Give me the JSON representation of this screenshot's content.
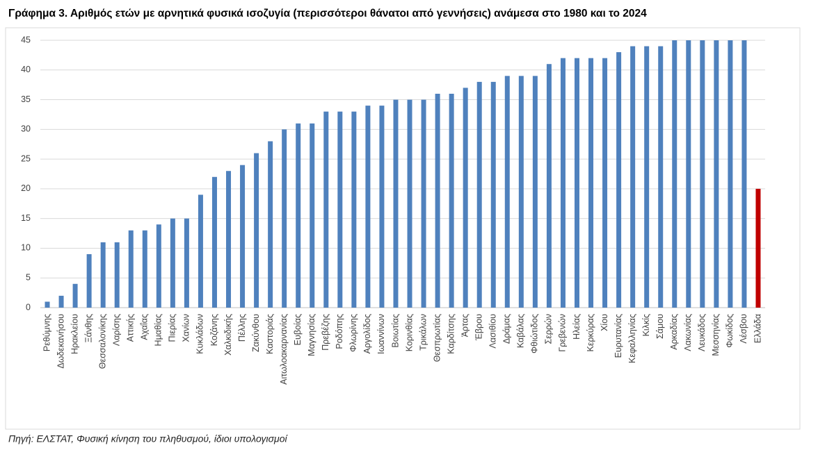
{
  "chart_data": {
    "type": "bar",
    "title": "Γράφημα 3. Αριθμός ετών με αρνητικά φυσικά ισοζυγία (περισσότεροι θάνατοι από γεννήσεις) ανάμεσα στο 1980 και το 2024",
    "source": "Πηγή: ΕΛΣΤΑΤ, Φυσική κίνηση του πληθυσμού, ίδιοι υπολογισμοί",
    "categories": [
      "Ρεθύμνης",
      "Δωδεκανήσου",
      "Ηρακλείου",
      "Ξάνθης",
      "Θεσσαλονίκης",
      "Λαρίσης",
      "Αττικής",
      "Αχαΐας",
      "Ημαθίας",
      "Πιερίας",
      "Χανίων",
      "Κυκλάδων",
      "Κοζάνης",
      "Χαλκιδικής",
      "Πέλλης",
      "Ζακύνθου",
      "Καστοριάς",
      "Αιτωλοακαρνανίας",
      "Ευβοίας",
      "Μαγνησίας",
      "Πρεβέζης",
      "Ροδόπης",
      "Φλωρίνης",
      "Αργολίδος",
      "Ιωαννίνων",
      "Βοιωτίας",
      "Κορινθίας",
      "Τρικάλων",
      "Θεσπρωτίας",
      "Καρδίτσης",
      "Άρτας",
      "Έβρου",
      "Λασιθίου",
      "Δράμας",
      "Καβάλας",
      "Φθιώτιδος",
      "Σερρών",
      "Γρεβενών",
      "Ηλείας",
      "Κερκύρας",
      "Χίου",
      "Ευρυτανίας",
      "Κεφαλληνίας",
      "Κιλκίς",
      "Σάμου",
      "Αρκαδίας",
      "Λακωνίας",
      "Λευκάδος",
      "Μεσσηνίας",
      "Φωκίδος",
      "Λέσβου",
      "Ελλάδα"
    ],
    "values": [
      1,
      2,
      4,
      9,
      11,
      11,
      13,
      13,
      14,
      15,
      15,
      19,
      22,
      23,
      24,
      26,
      28,
      30,
      31,
      31,
      33,
      33,
      33,
      34,
      34,
      35,
      35,
      35,
      36,
      36,
      37,
      38,
      38,
      39,
      39,
      39,
      41,
      42,
      42,
      42,
      42,
      43,
      44,
      44,
      44,
      45,
      45,
      45,
      45,
      45,
      45,
      20
    ],
    "colors": [
      "#4f81bd",
      "#4f81bd",
      "#4f81bd",
      "#4f81bd",
      "#4f81bd",
      "#4f81bd",
      "#4f81bd",
      "#4f81bd",
      "#4f81bd",
      "#4f81bd",
      "#4f81bd",
      "#4f81bd",
      "#4f81bd",
      "#4f81bd",
      "#4f81bd",
      "#4f81bd",
      "#4f81bd",
      "#4f81bd",
      "#4f81bd",
      "#4f81bd",
      "#4f81bd",
      "#4f81bd",
      "#4f81bd",
      "#4f81bd",
      "#4f81bd",
      "#4f81bd",
      "#4f81bd",
      "#4f81bd",
      "#4f81bd",
      "#4f81bd",
      "#4f81bd",
      "#4f81bd",
      "#4f81bd",
      "#4f81bd",
      "#4f81bd",
      "#4f81bd",
      "#4f81bd",
      "#4f81bd",
      "#4f81bd",
      "#4f81bd",
      "#4f81bd",
      "#4f81bd",
      "#4f81bd",
      "#4f81bd",
      "#4f81bd",
      "#4f81bd",
      "#4f81bd",
      "#4f81bd",
      "#4f81bd",
      "#4f81bd",
      "#4f81bd",
      "#c00000"
    ],
    "ylim": [
      0,
      45
    ],
    "yticks": [
      0,
      5,
      10,
      15,
      20,
      25,
      30,
      35,
      40,
      45
    ],
    "grid": true
  }
}
